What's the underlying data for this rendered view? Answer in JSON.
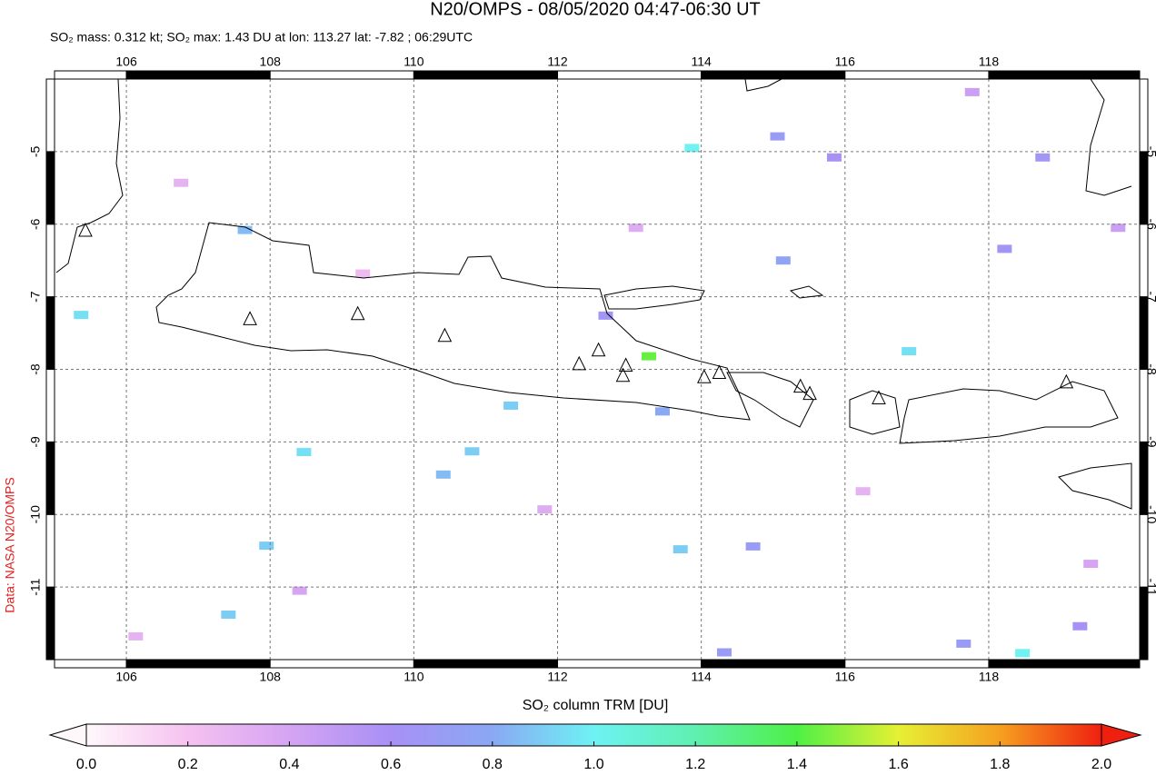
{
  "chart_data": {
    "type": "map",
    "title": "N20/OMPS - 08/05/2020 04:47-06:30 UT",
    "subtitle": "SO₂ mass: 0.312 kt; SO₂ max: 1.43 DU at lon: 113.27 lat: -7.82 ; 06:29UTC",
    "source_label": "Data: NASA N20/OMPS",
    "colorbar_label": "SO₂ column TRM [DU]",
    "xlim": [
      105,
      120.1
    ],
    "ylim": [
      -12,
      -4
    ],
    "xticks": [
      106,
      108,
      110,
      112,
      114,
      116,
      118
    ],
    "yticks": [
      -11,
      -10,
      -9,
      -8,
      -7,
      -6,
      -5
    ],
    "grid": true,
    "clim": [
      0,
      2
    ],
    "cticks": [
      {
        "value": 0,
        "label": "0.0"
      },
      {
        "value": 0.2,
        "label": "0.2"
      },
      {
        "value": 0.4,
        "label": "0.4"
      },
      {
        "value": 0.6,
        "label": "0.6"
      },
      {
        "value": 0.8,
        "label": "0.8"
      },
      {
        "value": 1,
        "label": "1.0"
      },
      {
        "value": 1.2,
        "label": "1.2"
      },
      {
        "value": 1.4,
        "label": "1.4"
      },
      {
        "value": 1.6,
        "label": "1.6"
      },
      {
        "value": 1.8,
        "label": "1.8"
      },
      {
        "value": 2,
        "label": "2.0"
      }
    ],
    "colormap": [
      "#fff8fb",
      "#f5c2f0",
      "#d5a4f3",
      "#a890f5",
      "#8aa8f4",
      "#6ef2f4",
      "#5ff0b0",
      "#4ef046",
      "#e6f034",
      "#f6a020",
      "#ef2010"
    ],
    "pixels": {
      "lon": [
        113.87,
        113.27,
        118.47,
        116.89,
        105.37,
        107.65,
        108.47,
        110.81,
        111.35,
        107.95,
        113.71,
        107.42,
        110.41,
        115.14,
        115.06,
        115.85,
        118.75,
        118.22,
        114.72,
        114.32,
        117.65,
        119.27,
        113.46,
        112.67,
        117.77,
        106.76,
        109.29,
        111.82,
        116.25,
        119.42,
        119.8,
        106.13,
        113.09,
        108.41
      ],
      "lat": [
        -4.95,
        -7.82,
        -11.91,
        -7.75,
        -7.25,
        -6.08,
        -9.14,
        -9.13,
        -8.5,
        -10.43,
        -10.48,
        -11.38,
        -9.45,
        -6.5,
        -4.79,
        -5.08,
        -5.08,
        -6.34,
        -10.44,
        -11.9,
        -11.78,
        -11.54,
        -8.58,
        -7.26,
        -4.18,
        -5.43,
        -6.68,
        -9.93,
        -9.68,
        -10.68,
        -6.05,
        -11.68,
        -6.05,
        -11.05
      ],
      "values": [
        1.0,
        1.43,
        1.0,
        0.95,
        0.95,
        0.85,
        0.95,
        0.9,
        0.9,
        0.9,
        0.9,
        0.9,
        0.85,
        0.75,
        0.7,
        0.6,
        0.65,
        0.65,
        0.7,
        0.7,
        0.7,
        0.6,
        0.8,
        0.65,
        0.45,
        0.3,
        0.25,
        0.35,
        0.3,
        0.4,
        0.45,
        0.3,
        0.35,
        0.4
      ]
    },
    "volcanoes": {
      "lon": [
        105.43,
        107.72,
        109.22,
        110.43,
        112.3,
        112.57,
        112.95,
        112.91,
        114.04,
        114.25,
        115.38,
        115.51,
        116.47,
        119.08
      ],
      "lat": [
        -6.09,
        -7.31,
        -7.24,
        -7.54,
        -7.93,
        -7.74,
        -7.95,
        -8.09,
        -8.11,
        -8.05,
        -8.24,
        -8.34,
        -8.4,
        -8.18
      ]
    }
  }
}
